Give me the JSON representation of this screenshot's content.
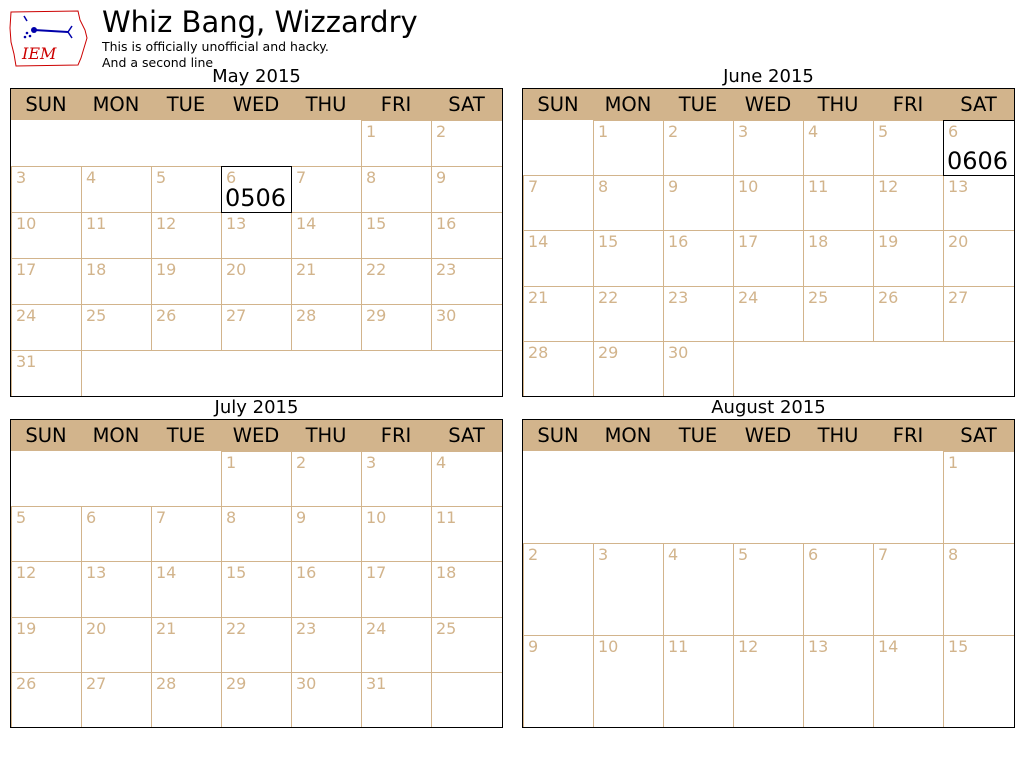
{
  "header": {
    "title": "Whiz Bang, Wizzardry",
    "subtitle_line1": "This is officially unofficial and hacky.",
    "subtitle_line2": "And a second line",
    "logo_text": "IEM"
  },
  "colors": {
    "accent": "#d2b48c",
    "logo_red": "#cc0000",
    "logo_blue": "#0000aa",
    "border": "#000000"
  },
  "weekdays": [
    "SUN",
    "MON",
    "TUE",
    "WED",
    "THU",
    "FRI",
    "SAT"
  ],
  "months": [
    {
      "title": "May 2015",
      "first_weekday": 5,
      "days": 31,
      "highlights": [
        {
          "day": 6,
          "text": "0506"
        }
      ]
    },
    {
      "title": "June 2015",
      "first_weekday": 1,
      "days": 30,
      "highlights": [
        {
          "day": 6,
          "text": "0606"
        }
      ]
    },
    {
      "title": "July 2015",
      "first_weekday": 3,
      "days": 31,
      "highlights": []
    },
    {
      "title": "August 2015",
      "first_weekday": 6,
      "days": 15,
      "highlights": []
    }
  ]
}
